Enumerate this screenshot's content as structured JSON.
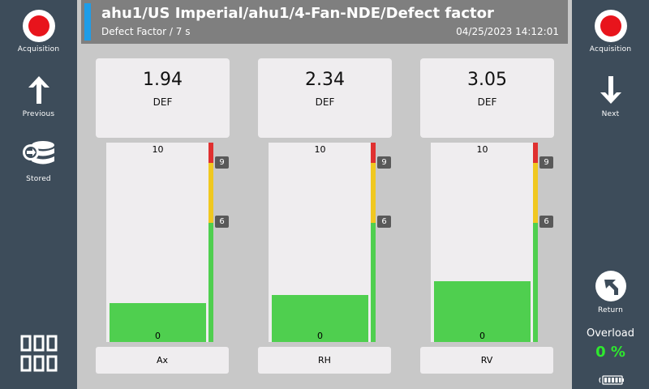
{
  "left_nav": {
    "acquisition_label": "Acquisition",
    "previous_label": "Previous",
    "stored_label": "Stored"
  },
  "right_nav": {
    "acquisition_label": "Acquisition",
    "next_label": "Next",
    "return_label": "Return",
    "overload_label": "Overload",
    "overload_value": "0 %"
  },
  "header": {
    "title": "ahu1/US Imperial/ahu1/4-Fan-NDE/Defect factor",
    "subtitle": "Defect Factor / 7 s",
    "timestamp": "04/25/2023 14:12:01"
  },
  "meters": [
    {
      "value": "1.94",
      "unit": "DEF",
      "axis": "Ax",
      "scale_max": "10",
      "scale_min": "0",
      "warn_tick": "9",
      "alert_tick": "6",
      "fill_fraction": 0.194
    },
    {
      "value": "2.34",
      "unit": "DEF",
      "axis": "RH",
      "scale_max": "10",
      "scale_min": "0",
      "warn_tick": "9",
      "alert_tick": "6",
      "fill_fraction": 0.234
    },
    {
      "value": "3.05",
      "unit": "DEF",
      "axis": "RV",
      "scale_max": "10",
      "scale_min": "0",
      "warn_tick": "9",
      "alert_tick": "6",
      "fill_fraction": 0.305
    }
  ],
  "colors": {
    "accent": "#1e9de8",
    "record": "#e8141c",
    "fill_green": "#4fcf4f",
    "zone_red": "#e03030",
    "zone_yellow": "#f0c820",
    "zone_green": "#4fcf4f",
    "overload_green": "#2ee82e"
  }
}
